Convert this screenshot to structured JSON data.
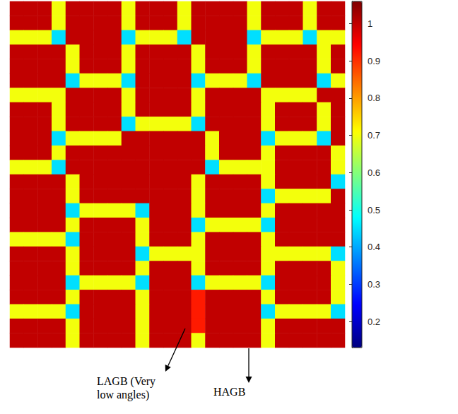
{
  "chart_data": {
    "type": "heatmap",
    "tick_labels": false,
    "colorbar_range": [
      0.13,
      1.06
    ],
    "colorbar_ticks": [
      0.2,
      0.3,
      0.4,
      0.5,
      0.6,
      0.7,
      0.8,
      0.9,
      1
    ],
    "annotations": [
      {
        "text": "LAGB (Very low angles)"
      },
      {
        "text": "HAGB"
      }
    ],
    "cells": [
      [
        1,
        1,
        1,
        0.7,
        1,
        1,
        1,
        1,
        0.7,
        1,
        1,
        1,
        0.7,
        1,
        1,
        1,
        1,
        0.7,
        1,
        1,
        1,
        0.7,
        1,
        1
      ],
      [
        1,
        1,
        1,
        0.7,
        1,
        1,
        1,
        1,
        0.7,
        1,
        1,
        1,
        0.7,
        1,
        1,
        1,
        1,
        0.7,
        1,
        1,
        1,
        0.7,
        1,
        1
      ],
      [
        0.7,
        0.7,
        0.7,
        0.45,
        1,
        1,
        1,
        1,
        0.45,
        0.7,
        0.7,
        0.7,
        0.45,
        1,
        1,
        1,
        1,
        0.45,
        0.7,
        0.7,
        0.7,
        0.45,
        0.7,
        0.7
      ],
      [
        1,
        1,
        1,
        1,
        0.7,
        1,
        1,
        1,
        0.7,
        1,
        1,
        1,
        1,
        0.7,
        1,
        1,
        1,
        0.7,
        1,
        1,
        1,
        1,
        0.7,
        1
      ],
      [
        1,
        1,
        1,
        1,
        0.7,
        1,
        1,
        1,
        0.7,
        1,
        1,
        1,
        1,
        0.7,
        1,
        1,
        1,
        0.7,
        1,
        1,
        1,
        1,
        0.7,
        1
      ],
      [
        1,
        1,
        1,
        1,
        0.45,
        0.7,
        0.7,
        0.7,
        0.45,
        1,
        1,
        1,
        1,
        0.45,
        0.7,
        0.7,
        0.7,
        0.45,
        1,
        1,
        1,
        1,
        0.45,
        0.7
      ],
      [
        0.7,
        0.7,
        0.7,
        0.7,
        1,
        1,
        1,
        1,
        0.7,
        1,
        1,
        1,
        1,
        0.7,
        1,
        1,
        1,
        1,
        0.7,
        0.7,
        0.7,
        0.7,
        1,
        1
      ],
      [
        1,
        1,
        1,
        0.7,
        1,
        1,
        1,
        1,
        0.7,
        1,
        1,
        1,
        1,
        0.7,
        1,
        1,
        1,
        1,
        0.7,
        1,
        1,
        1,
        0.7,
        1
      ],
      [
        1,
        1,
        1,
        0.7,
        1,
        1,
        1,
        1,
        0.45,
        0.7,
        0.7,
        0.7,
        0.7,
        0.45,
        1,
        1,
        1,
        1,
        0.7,
        1,
        1,
        1,
        0.7,
        1
      ],
      [
        1,
        1,
        1,
        0.45,
        0.7,
        0.7,
        0.7,
        0.7,
        1,
        1,
        1,
        1,
        1,
        1,
        0.7,
        1,
        1,
        1,
        0.45,
        0.7,
        0.7,
        0.7,
        0.45,
        1
      ],
      [
        1,
        1,
        1,
        0.7,
        1,
        1,
        1,
        1,
        1,
        1,
        1,
        1,
        1,
        1,
        0.7,
        1,
        1,
        1,
        0.7,
        1,
        1,
        1,
        1,
        0.7
      ],
      [
        0.7,
        0.7,
        0.7,
        0.45,
        1,
        1,
        1,
        1,
        1,
        1,
        1,
        1,
        1,
        1,
        0.45,
        0.7,
        0.7,
        0.7,
        0.7,
        1,
        1,
        1,
        1,
        0.7
      ],
      [
        1,
        1,
        1,
        1,
        0.7,
        1,
        1,
        1,
        1,
        1,
        1,
        1,
        1,
        0.7,
        1,
        1,
        1,
        1,
        0.7,
        1,
        1,
        1,
        1,
        0.45
      ],
      [
        1,
        1,
        1,
        1,
        0.7,
        1,
        1,
        1,
        1,
        1,
        1,
        1,
        1,
        0.7,
        1,
        1,
        1,
        1,
        0.45,
        0.7,
        0.7,
        0.7,
        0.7,
        1
      ],
      [
        1,
        1,
        1,
        1,
        0.45,
        0.7,
        0.7,
        0.7,
        0.7,
        0.45,
        1,
        1,
        1,
        0.7,
        1,
        1,
        1,
        1,
        0.7,
        1,
        1,
        1,
        1,
        1
      ],
      [
        1,
        1,
        1,
        1,
        0.7,
        1,
        1,
        1,
        1,
        0.7,
        1,
        1,
        1,
        0.45,
        0.7,
        0.7,
        0.7,
        0.7,
        0.45,
        1,
        1,
        1,
        1,
        1
      ],
      [
        0.7,
        0.7,
        0.7,
        0.7,
        0.45,
        1,
        1,
        1,
        1,
        0.7,
        1,
        1,
        1,
        0.7,
        1,
        1,
        1,
        1,
        0.7,
        1,
        1,
        1,
        1,
        1
      ],
      [
        1,
        1,
        1,
        1,
        0.7,
        1,
        1,
        1,
        1,
        0.45,
        0.7,
        0.7,
        0.7,
        0.7,
        1,
        1,
        1,
        1,
        0.7,
        0.7,
        0.7,
        0.7,
        0.7,
        0.45
      ],
      [
        1,
        1,
        1,
        1,
        0.7,
        1,
        1,
        1,
        1,
        0.7,
        1,
        1,
        1,
        0.7,
        1,
        1,
        1,
        1,
        0.7,
        1,
        1,
        1,
        1,
        0.7
      ],
      [
        1,
        1,
        1,
        1,
        0.45,
        0.7,
        0.7,
        0.7,
        0.7,
        0.45,
        1,
        1,
        1,
        0.45,
        0.7,
        0.7,
        0.7,
        0.7,
        0.45,
        1,
        1,
        1,
        1,
        0.7
      ],
      [
        1,
        1,
        1,
        1,
        0.7,
        1,
        1,
        1,
        1,
        0.7,
        1,
        1,
        1,
        0.92,
        1,
        1,
        1,
        1,
        0.7,
        1,
        1,
        1,
        1,
        0.7
      ],
      [
        0.7,
        0.7,
        0.7,
        0.7,
        0.45,
        1,
        1,
        1,
        1,
        0.7,
        1,
        1,
        1,
        0.92,
        1,
        1,
        1,
        1,
        0.45,
        0.7,
        0.7,
        0.7,
        0.7,
        0.45
      ],
      [
        1,
        1,
        1,
        1,
        0.7,
        1,
        1,
        1,
        1,
        0.7,
        1,
        1,
        1,
        0.92,
        1,
        1,
        1,
        1,
        0.7,
        1,
        1,
        1,
        1,
        1
      ],
      [
        1,
        1,
        1,
        1,
        0.7,
        1,
        1,
        1,
        1,
        0.7,
        1,
        1,
        1,
        0.7,
        1,
        1,
        1,
        1,
        0.7,
        1,
        1,
        1,
        1,
        1
      ]
    ]
  }
}
